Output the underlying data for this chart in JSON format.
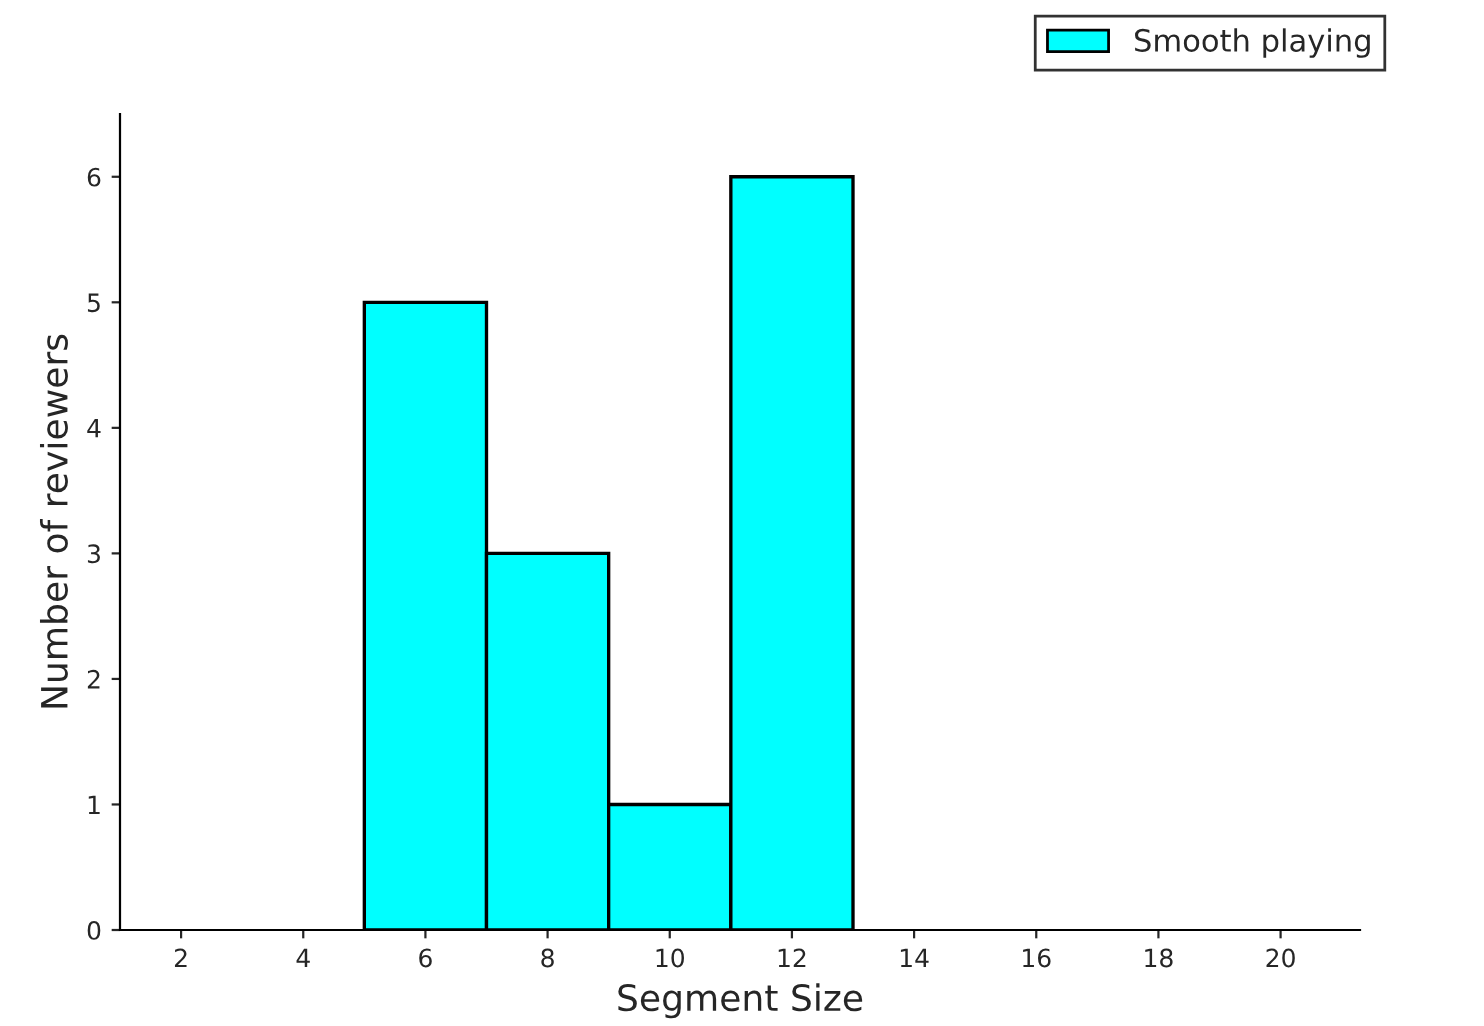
{
  "chart_data": {
    "type": "histogram",
    "xlabel": "Segment Size",
    "ylabel": "Number of reviewers",
    "bins": [
      5,
      7,
      9,
      11,
      13
    ],
    "series": [
      {
        "name": "Smooth playing",
        "color": "#00ffff",
        "values": [
          5,
          3,
          1,
          6
        ]
      }
    ],
    "xlim": [
      1,
      21.3
    ],
    "xticks": [
      2,
      4,
      6,
      8,
      10,
      12,
      14,
      16,
      18,
      20
    ],
    "ylim": [
      0,
      6.5
    ],
    "yticks": [
      0,
      1,
      2,
      3,
      4,
      5,
      6
    ],
    "grid": false,
    "legend": "top right"
  }
}
